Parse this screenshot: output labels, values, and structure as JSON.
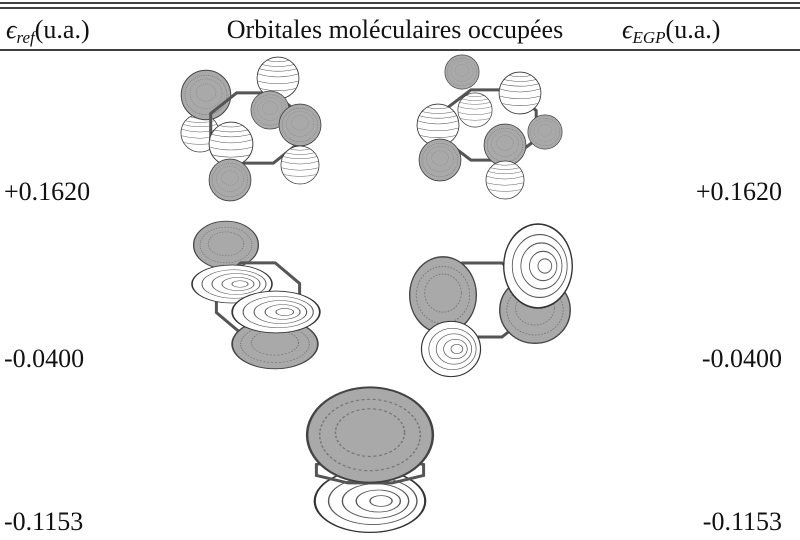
{
  "table": {
    "header": [
      {
        "symbol": "ϵ",
        "subscript": "ref",
        "unit": "(u.a.)"
      },
      {
        "text": "Orbitales moléculaires occupées"
      },
      {
        "symbol": "ϵ",
        "subscript": "EGP",
        "unit": "(u.a.)"
      }
    ],
    "rows": [
      [
        "+0.1620",
        "+0.1620"
      ],
      [
        "-0.0400",
        "-0.0400"
      ],
      [
        "-0.1153",
        "-0.1153"
      ]
    ]
  }
}
